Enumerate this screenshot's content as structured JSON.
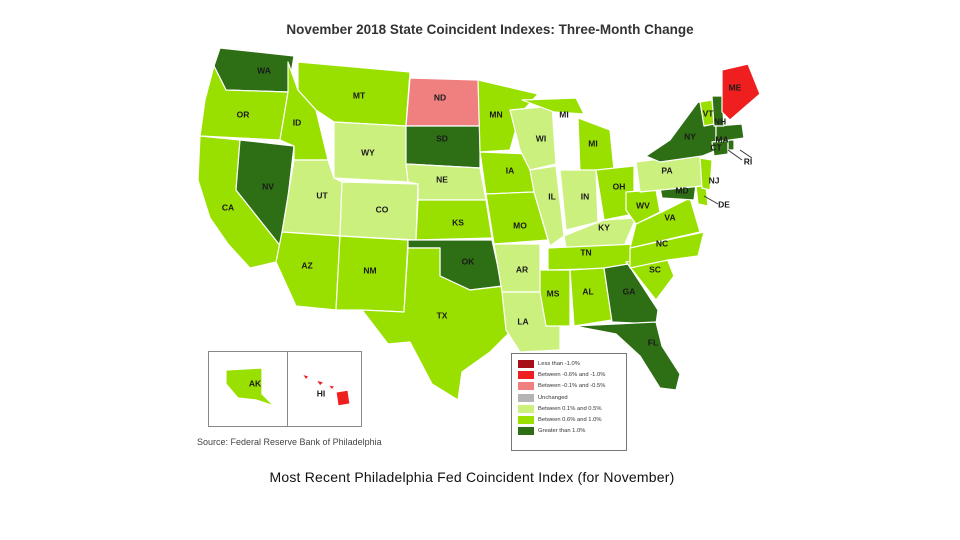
{
  "title": "November 2018 State Coincident Indexes: Three-Month Change",
  "source": "Source: Federal Reserve Bank of Philadelphia",
  "caption": "Most Recent Philadelphia Fed Coincident Index (for November)",
  "legend": [
    {
      "label": "Less than -1.0%",
      "color": "#a50f15"
    },
    {
      "label": "Between -0.6% and -1.0%",
      "color": "#ef1f1f"
    },
    {
      "label": "Between -0.1% and -0.5%",
      "color": "#f08080"
    },
    {
      "label": "Unchanged",
      "color": "#b4b4b4"
    },
    {
      "label": "Between 0.1% and 0.5%",
      "color": "#ccf07e"
    },
    {
      "label": "Between 0.6% and 1.0%",
      "color": "#99e000"
    },
    {
      "label": "Greater than 1.0%",
      "color": "#2e6e14"
    }
  ],
  "states": [
    {
      "abbr": "WA",
      "category": "Greater than 1.0%"
    },
    {
      "abbr": "OR",
      "category": "Between 0.6% and 1.0%"
    },
    {
      "abbr": "CA",
      "category": "Between 0.6% and 1.0%"
    },
    {
      "abbr": "NV",
      "category": "Greater than 1.0%"
    },
    {
      "abbr": "ID",
      "category": "Between 0.6% and 1.0%"
    },
    {
      "abbr": "MT",
      "category": "Between 0.6% and 1.0%"
    },
    {
      "abbr": "WY",
      "category": "Between 0.1% and 0.5%"
    },
    {
      "abbr": "UT",
      "category": "Between 0.1% and 0.5%"
    },
    {
      "abbr": "CO",
      "category": "Between 0.1% and 0.5%"
    },
    {
      "abbr": "AZ",
      "category": "Between 0.6% and 1.0%"
    },
    {
      "abbr": "NM",
      "category": "Between 0.6% and 1.0%"
    },
    {
      "abbr": "ND",
      "category": "Between -0.1% and -0.5%"
    },
    {
      "abbr": "SD",
      "category": "Greater than 1.0%"
    },
    {
      "abbr": "NE",
      "category": "Between 0.1% and 0.5%"
    },
    {
      "abbr": "KS",
      "category": "Between 0.6% and 1.0%"
    },
    {
      "abbr": "OK",
      "category": "Greater than 1.0%"
    },
    {
      "abbr": "TX",
      "category": "Between 0.6% and 1.0%"
    },
    {
      "abbr": "MN",
      "category": "Between 0.6% and 1.0%"
    },
    {
      "abbr": "IA",
      "category": "Between 0.6% and 1.0%"
    },
    {
      "abbr": "MO",
      "category": "Between 0.6% and 1.0%"
    },
    {
      "abbr": "AR",
      "category": "Between 0.1% and 0.5%"
    },
    {
      "abbr": "LA",
      "category": "Between 0.1% and 0.5%"
    },
    {
      "abbr": "WI",
      "category": "Between 0.1% and 0.5%"
    },
    {
      "abbr": "IL",
      "category": "Between 0.1% and 0.5%"
    },
    {
      "abbr": "MI",
      "category": "Between 0.6% and 1.0%"
    },
    {
      "abbr": "IN",
      "category": "Between 0.1% and 0.5%"
    },
    {
      "abbr": "OH",
      "category": "Between 0.6% and 1.0%"
    },
    {
      "abbr": "KY",
      "category": "Between 0.1% and 0.5%"
    },
    {
      "abbr": "TN",
      "category": "Between 0.6% and 1.0%"
    },
    {
      "abbr": "MS",
      "category": "Between 0.6% and 1.0%"
    },
    {
      "abbr": "AL",
      "category": "Between 0.6% and 1.0%"
    },
    {
      "abbr": "GA",
      "category": "Greater than 1.0%"
    },
    {
      "abbr": "FL",
      "category": "Greater than 1.0%"
    },
    {
      "abbr": "SC",
      "category": "Between 0.6% and 1.0%"
    },
    {
      "abbr": "NC",
      "category": "Between 0.6% and 1.0%"
    },
    {
      "abbr": "VA",
      "category": "Between 0.6% and 1.0%"
    },
    {
      "abbr": "WV",
      "category": "Between 0.6% and 1.0%"
    },
    {
      "abbr": "MD",
      "category": "Greater than 1.0%"
    },
    {
      "abbr": "DE",
      "category": "Between 0.6% and 1.0%"
    },
    {
      "abbr": "PA",
      "category": "Between 0.1% and 0.5%"
    },
    {
      "abbr": "NJ",
      "category": "Between 0.6% and 1.0%"
    },
    {
      "abbr": "NY",
      "category": "Greater than 1.0%"
    },
    {
      "abbr": "CT",
      "category": "Greater than 1.0%"
    },
    {
      "abbr": "RI",
      "category": "Greater than 1.0%"
    },
    {
      "abbr": "MA",
      "category": "Greater than 1.0%"
    },
    {
      "abbr": "VT",
      "category": "Between 0.6% and 1.0%"
    },
    {
      "abbr": "NH",
      "category": "Greater than 1.0%"
    },
    {
      "abbr": "ME",
      "category": "Between -0.6% and -1.0%"
    },
    {
      "abbr": "AK",
      "category": "Between 0.6% and 1.0%"
    },
    {
      "abbr": "HI",
      "category": "Between -0.6% and -1.0%"
    }
  ]
}
